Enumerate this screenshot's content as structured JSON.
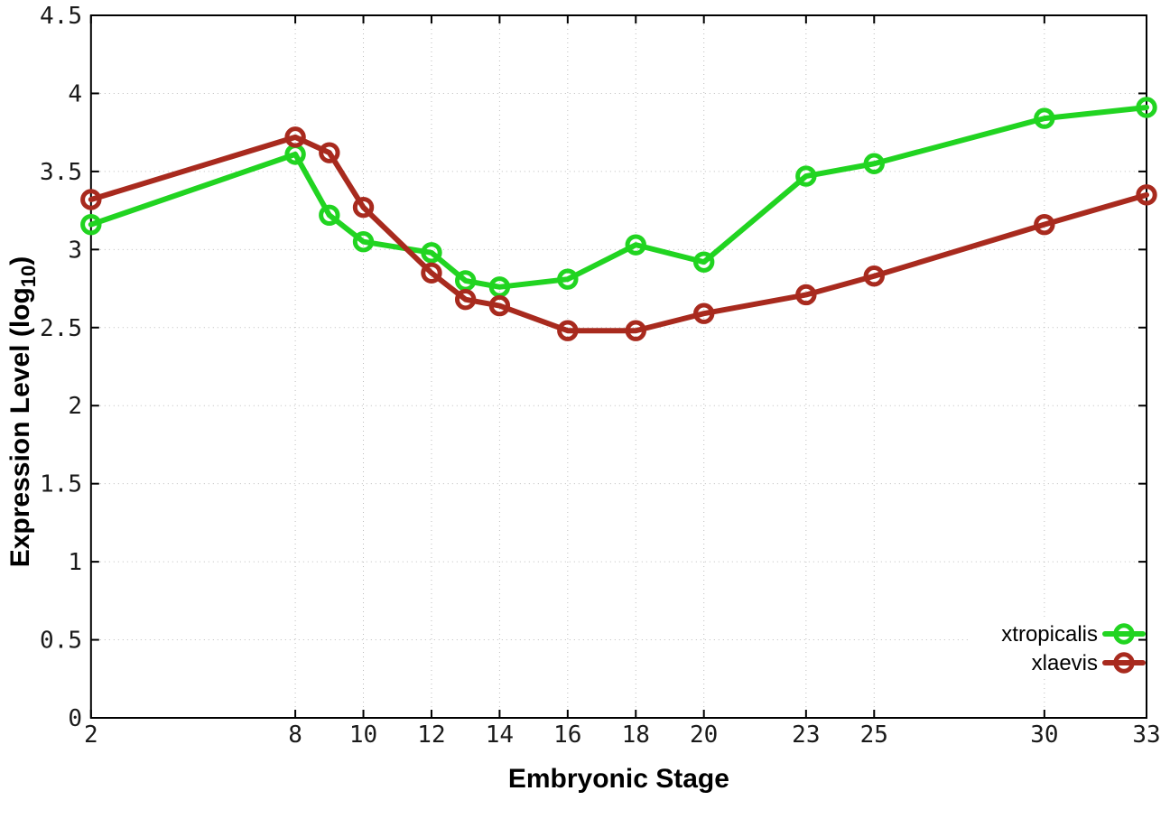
{
  "figure": {
    "background": "#ffffff"
  },
  "chart_data": {
    "type": "line",
    "title": "",
    "xlabel": "Embryonic Stage",
    "ylabel": "Expression Level (log10)",
    "ylabel_parts": {
      "main": "Expression Level (log",
      "sub": "10",
      "suffix": ")"
    },
    "x": [
      2,
      8,
      9,
      10,
      12,
      13,
      14,
      16,
      18,
      20,
      23,
      25,
      30,
      33
    ],
    "series": [
      {
        "name": "xtropicalis",
        "color": "#21d421",
        "values": [
          3.16,
          3.61,
          3.22,
          3.05,
          2.98,
          2.8,
          2.76,
          2.81,
          3.03,
          2.92,
          3.47,
          3.55,
          3.84,
          3.91
        ]
      },
      {
        "name": "xlaevis",
        "color": "#a82a1e",
        "values": [
          3.32,
          3.72,
          3.62,
          3.27,
          2.85,
          2.68,
          2.64,
          2.48,
          2.48,
          2.59,
          2.71,
          2.83,
          3.16,
          3.35
        ]
      }
    ],
    "x_ticks": [
      2,
      8,
      10,
      12,
      14,
      16,
      18,
      20,
      23,
      25,
      30,
      33
    ],
    "y_ticks": [
      "0",
      "0.5",
      "1",
      "1.5",
      "2",
      "2.5",
      "3",
      "3.5",
      "4",
      "4.5"
    ],
    "xlim": [
      2,
      33
    ],
    "ylim": [
      0,
      4.5
    ],
    "grid": true,
    "legend_position": "bottom-right",
    "axis_color": "#000000",
    "grid_color": "#bdbdbd",
    "tick_label_color": "#1a1a1a",
    "marker": "open-circle"
  }
}
